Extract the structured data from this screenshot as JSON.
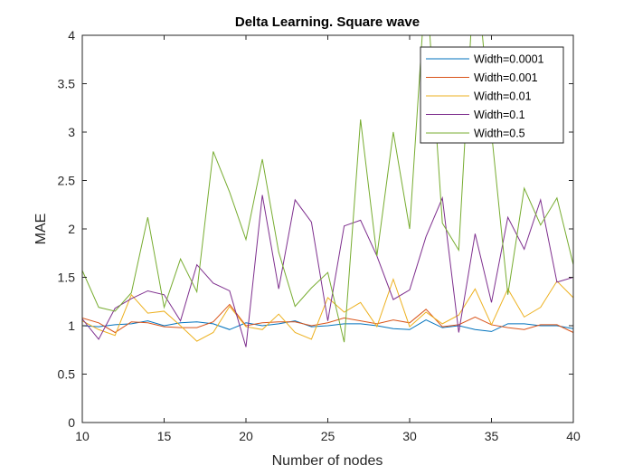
{
  "chart_data": {
    "type": "line",
    "title": "Delta Learning. Square wave",
    "xlabel": "Number of nodes",
    "ylabel": "MAE",
    "xlim": [
      10,
      40
    ],
    "ylim": [
      0,
      4
    ],
    "xticks": [
      "10",
      "15",
      "20",
      "25",
      "30",
      "35",
      "40"
    ],
    "yticks": [
      "0",
      "0.5",
      "1",
      "1.5",
      "2",
      "2.5",
      "3",
      "3.5",
      "4"
    ],
    "grid": false,
    "legend_position": "top-right",
    "x": [
      10,
      11,
      12,
      13,
      14,
      15,
      16,
      17,
      18,
      19,
      20,
      21,
      22,
      23,
      24,
      25,
      26,
      27,
      28,
      29,
      30,
      31,
      32,
      33,
      34,
      35,
      36,
      37,
      38,
      39,
      40
    ],
    "series": [
      {
        "name": "Width=0.0001",
        "color": "#0072BD",
        "values": [
          1.0,
          0.99,
          1.01,
          1.02,
          1.05,
          1.0,
          1.03,
          1.04,
          1.02,
          0.96,
          1.03,
          1.0,
          1.02,
          1.05,
          0.99,
          1.0,
          1.02,
          1.02,
          1.0,
          0.97,
          0.96,
          1.06,
          0.98,
          1.0,
          0.96,
          0.94,
          1.02,
          1.02,
          1.0,
          1.0,
          0.97
        ]
      },
      {
        "name": "Width=0.001",
        "color": "#D95319",
        "values": [
          1.08,
          1.03,
          0.93,
          1.04,
          1.03,
          0.99,
          0.98,
          0.98,
          1.04,
          1.22,
          1.0,
          1.03,
          1.04,
          1.04,
          1.0,
          1.03,
          1.08,
          1.05,
          1.02,
          1.06,
          1.03,
          1.17,
          0.99,
          1.01,
          1.09,
          1.01,
          0.98,
          0.96,
          1.01,
          1.01,
          0.93
        ]
      },
      {
        "name": "Width=0.01",
        "color": "#EDB120",
        "values": [
          1.05,
          0.96,
          0.9,
          1.32,
          1.13,
          1.15,
          1.0,
          0.84,
          0.93,
          1.2,
          0.99,
          0.96,
          1.12,
          0.93,
          0.86,
          1.29,
          1.14,
          1.24,
          0.99,
          1.48,
          0.99,
          1.14,
          1.02,
          1.11,
          1.38,
          1.01,
          1.38,
          1.09,
          1.19,
          1.46,
          1.29
        ]
      },
      {
        "name": "Width=0.1",
        "color": "#7E2F8E",
        "values": [
          1.07,
          0.86,
          1.18,
          1.28,
          1.36,
          1.32,
          1.05,
          1.63,
          1.44,
          1.36,
          0.78,
          2.35,
          1.38,
          2.3,
          2.07,
          1.05,
          2.03,
          2.09,
          1.72,
          1.27,
          1.37,
          1.92,
          2.32,
          0.93,
          1.95,
          1.24,
          2.12,
          1.79,
          2.3,
          1.45,
          1.5
        ]
      },
      {
        "name": "Width=0.5",
        "color": "#77AC30",
        "values": [
          1.57,
          1.19,
          1.15,
          1.34,
          2.12,
          1.19,
          1.69,
          1.35,
          2.8,
          2.38,
          1.89,
          2.72,
          1.76,
          1.2,
          1.39,
          1.55,
          0.83,
          3.13,
          1.72,
          3.0,
          2.0,
          4.6,
          2.06,
          1.78,
          4.8,
          3.0,
          1.32,
          2.42,
          2.04,
          2.32,
          1.63
        ]
      }
    ]
  }
}
